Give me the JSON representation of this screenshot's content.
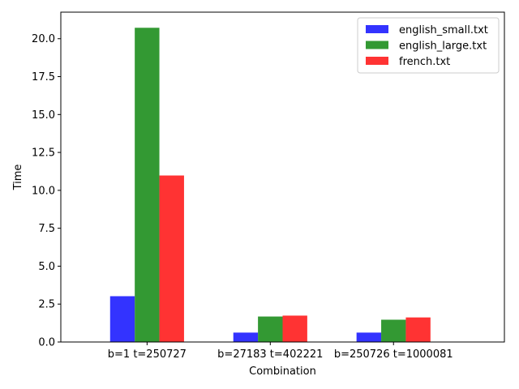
{
  "chart_data": {
    "type": "bar",
    "title": "",
    "xlabel": "Combination",
    "ylabel": "Time",
    "categories": [
      "b=1 t=250727",
      "b=27183 t=402221",
      "b=250726 t=1000081"
    ],
    "series": [
      {
        "name": "english_small.txt",
        "color": "#3333ff",
        "values": [
          3.02,
          0.62,
          0.62
        ]
      },
      {
        "name": "english_large.txt",
        "color": "#339933",
        "values": [
          20.72,
          1.68,
          1.47
        ]
      },
      {
        "name": "french.txt",
        "color": "#ff3333",
        "values": [
          10.98,
          1.74,
          1.62
        ]
      }
    ],
    "ylim": [
      0,
      21.75
    ],
    "yticks": [
      "0.0",
      "2.5",
      "5.0",
      "7.5",
      "10.0",
      "12.5",
      "15.0",
      "17.5",
      "20.0"
    ],
    "grid": false,
    "legend_position": "top-right"
  }
}
